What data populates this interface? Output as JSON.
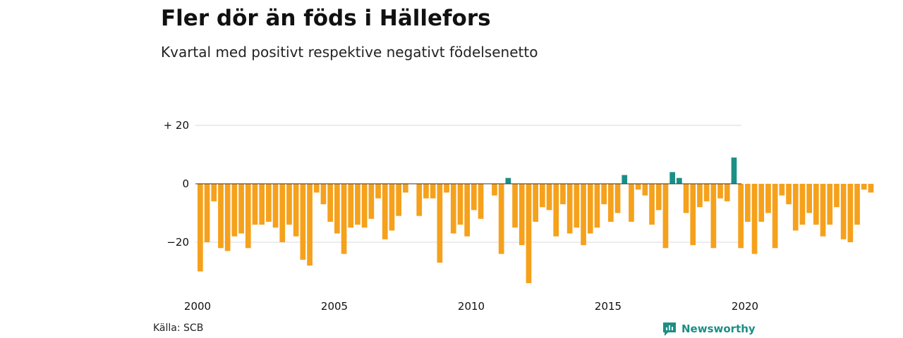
{
  "title": "Fler dör än föds i Hällefors",
  "subtitle": "Kvartal med positivt respektive negativt födelsenetto",
  "source": "Källa: SCB",
  "brand": {
    "name": "Newsworthy",
    "icon": "newsworthy-logo-icon"
  },
  "colors": {
    "negative": "#f5a11c",
    "positive": "#1a8f85",
    "grid": "#d9d9d9",
    "baseline": "#333333",
    "text": "#111111"
  },
  "chart_data": {
    "type": "bar",
    "title": "Fler dör än föds i Hällefors",
    "subtitle": "Kvartal med positivt respektive negativt födelsenetto",
    "xlabel": "",
    "ylabel": "",
    "x_start": "2000",
    "x_period": "quarter",
    "x_tick_labels": [
      "2000",
      "2005",
      "2010",
      "2015",
      "2020"
    ],
    "y_ticks": [
      20,
      0,
      -20
    ],
    "y_tick_labels": [
      "+ 20",
      "0",
      "−20"
    ],
    "ylim": [
      -36,
      23
    ],
    "grid": true,
    "legend": "none",
    "values": [
      -30,
      -20,
      -6,
      -22,
      -23,
      -18,
      -17,
      -22,
      -14,
      -14,
      -13,
      -15,
      -20,
      -14,
      -18,
      -26,
      -28,
      -3,
      -7,
      -13,
      -17,
      -24,
      -15,
      -14,
      -15,
      -12,
      -5,
      -19,
      -16,
      -11,
      -3,
      0,
      -11,
      -5,
      -5,
      -27,
      -3,
      -17,
      -14,
      -18,
      -9,
      -12,
      0,
      -4,
      -24,
      2,
      -15,
      -21,
      -34,
      -13,
      -8,
      -9,
      -18,
      -7,
      -17,
      -15,
      -21,
      -17,
      -15,
      -7,
      -13,
      -10,
      3,
      -13,
      -2,
      -4,
      -14,
      -9,
      -22,
      4,
      2,
      -10,
      -21,
      -8,
      -6,
      -22,
      -5,
      -6,
      9,
      -22,
      -13,
      -24,
      -13,
      -10,
      -22,
      -4,
      -7,
      -16,
      -14,
      -10,
      -14,
      -18,
      -14,
      -8,
      -19,
      -20,
      -14,
      -2,
      -3
    ]
  }
}
